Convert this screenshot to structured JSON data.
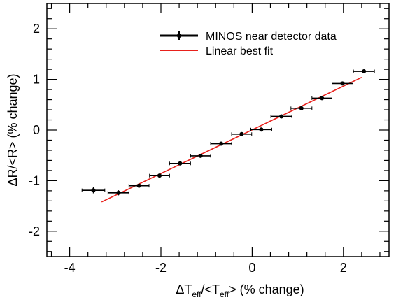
{
  "chart_data": {
    "type": "scatter",
    "title": "",
    "xlabel": {
      "prefix": "ΔT",
      "sub1": "eff",
      "mid": "/<T",
      "sub2": "eff",
      "suffix": "> (% change)"
    },
    "ylabel": "ΔR/<R> (% change)",
    "xlim": [
      -4.5,
      3.0
    ],
    "ylim": [
      -2.5,
      2.5
    ],
    "x_ticks": [
      -4,
      -2,
      0,
      2
    ],
    "y_ticks": [
      -2,
      -1,
      0,
      1,
      2
    ],
    "x_tick_labels": [
      "-4",
      "-2",
      "0",
      "2"
    ],
    "y_tick_labels": [
      "-2",
      "-1",
      "0",
      "1",
      "2"
    ],
    "grid": false,
    "legend_position": "top-right",
    "series": [
      {
        "name": "MINOS near detector data",
        "color": "#000000",
        "kind": "points_with_errorbars",
        "points": [
          {
            "x": -3.48,
            "y": -1.19,
            "xerr": 0.25,
            "yerr": 0.06
          },
          {
            "x": -2.93,
            "y": -1.24,
            "xerr": 0.23,
            "yerr": 0.05
          },
          {
            "x": -2.48,
            "y": -1.1,
            "xerr": 0.22,
            "yerr": 0.03
          },
          {
            "x": -2.03,
            "y": -0.9,
            "xerr": 0.22,
            "yerr": 0.03
          },
          {
            "x": -1.58,
            "y": -0.66,
            "xerr": 0.23,
            "yerr": 0.03
          },
          {
            "x": -1.13,
            "y": -0.51,
            "xerr": 0.22,
            "yerr": 0.03
          },
          {
            "x": -0.68,
            "y": -0.27,
            "xerr": 0.23,
            "yerr": 0.03
          },
          {
            "x": -0.23,
            "y": -0.08,
            "xerr": 0.22,
            "yerr": 0.03
          },
          {
            "x": 0.2,
            "y": 0.01,
            "xerr": 0.23,
            "yerr": 0.03
          },
          {
            "x": 0.64,
            "y": 0.27,
            "xerr": 0.23,
            "yerr": 0.03
          },
          {
            "x": 1.08,
            "y": 0.43,
            "xerr": 0.23,
            "yerr": 0.03
          },
          {
            "x": 1.53,
            "y": 0.63,
            "xerr": 0.22,
            "yerr": 0.03
          },
          {
            "x": 1.98,
            "y": 0.92,
            "xerr": 0.23,
            "yerr": 0.03
          },
          {
            "x": 2.45,
            "y": 1.16,
            "xerr": 0.23,
            "yerr": 0.04
          }
        ]
      },
      {
        "name": "Linear best fit",
        "color": "#e8211c",
        "kind": "line",
        "points": [
          {
            "x": -3.3,
            "y": -1.42
          },
          {
            "x": 2.4,
            "y": 1.04
          }
        ]
      }
    ]
  }
}
